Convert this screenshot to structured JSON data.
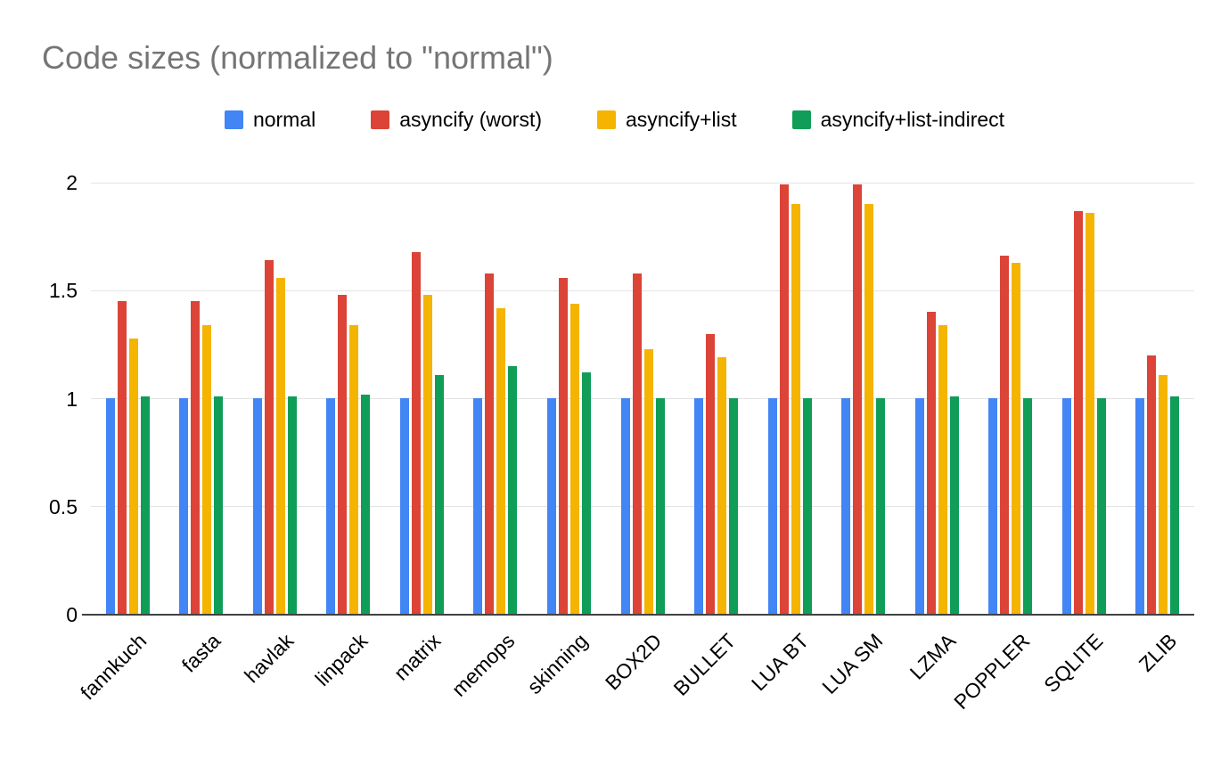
{
  "chart_data": {
    "type": "bar",
    "title": "Code sizes (normalized to \"normal\")",
    "xlabel": "",
    "ylabel": "",
    "ylim": [
      0,
      2
    ],
    "yticks": [
      0,
      0.5,
      1,
      1.5,
      2
    ],
    "grid": true,
    "legend_position": "top",
    "categories": [
      "fannkuch",
      "fasta",
      "havlak",
      "linpack",
      "matrix",
      "memops",
      "skinning",
      "BOX2D",
      "BULLET",
      "LUA BT",
      "LUA SM",
      "LZMA",
      "POPPLER",
      "SQLITE",
      "ZLIB"
    ],
    "series": [
      {
        "name": "normal",
        "color": "#4285F4",
        "values": [
          1.0,
          1.0,
          1.0,
          1.0,
          1.0,
          1.0,
          1.0,
          1.0,
          1.0,
          1.0,
          1.0,
          1.0,
          1.0,
          1.0,
          1.0
        ]
      },
      {
        "name": "asyncify (worst)",
        "color": "#DB4437",
        "values": [
          1.45,
          1.45,
          1.64,
          1.48,
          1.68,
          1.58,
          1.56,
          1.58,
          1.3,
          1.99,
          1.99,
          1.4,
          1.66,
          1.87,
          1.2
        ]
      },
      {
        "name": "asyncify+list",
        "color": "#F4B400",
        "values": [
          1.28,
          1.34,
          1.56,
          1.34,
          1.48,
          1.42,
          1.44,
          1.23,
          1.19,
          1.9,
          1.9,
          1.34,
          1.63,
          1.86,
          1.11
        ]
      },
      {
        "name": "asyncify+list-indirect",
        "color": "#0F9D58",
        "values": [
          1.01,
          1.01,
          1.01,
          1.02,
          1.11,
          1.15,
          1.12,
          1.0,
          1.0,
          1.0,
          1.0,
          1.01,
          1.0,
          1.0,
          1.01
        ]
      }
    ],
    "colors": {
      "title": "#757575",
      "axis_text": "#000000",
      "gridline": "#e3e3e3",
      "baseline": "#424242",
      "background": "#ffffff"
    }
  }
}
